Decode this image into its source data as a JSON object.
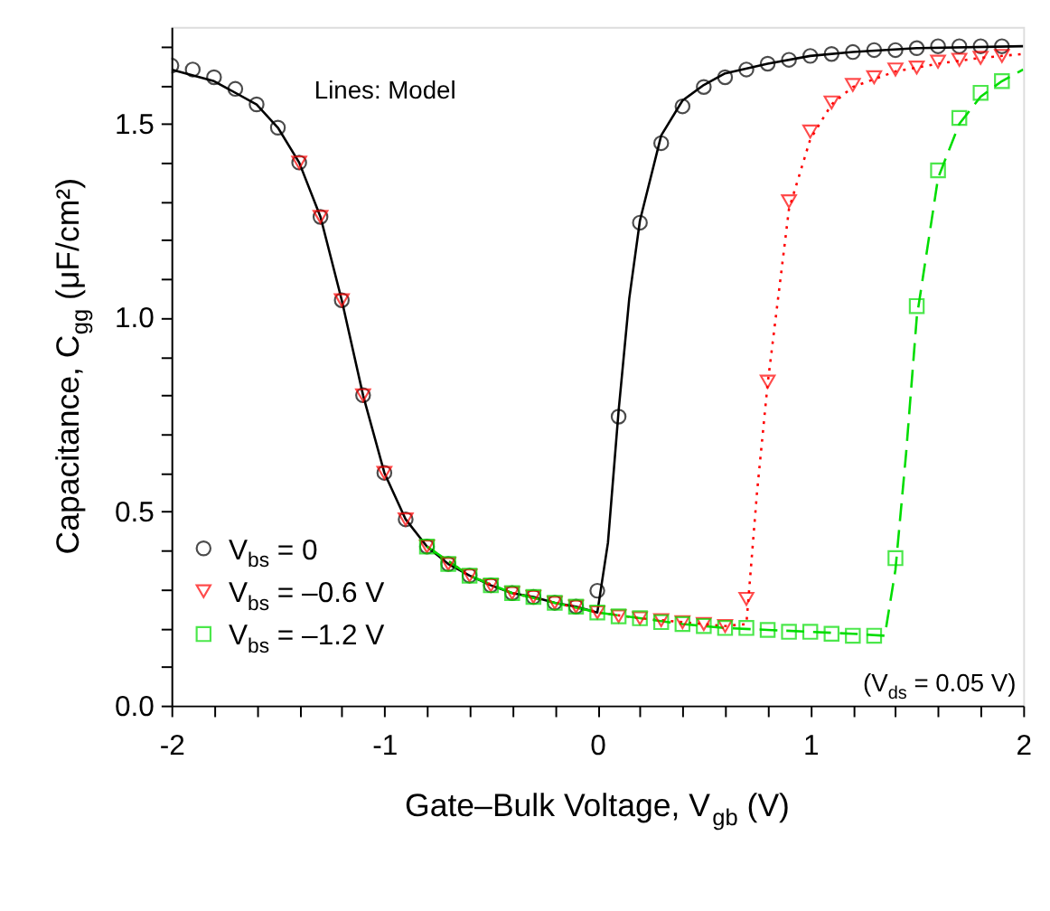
{
  "chart_data": {
    "type": "scatter",
    "xlabel": "Gate–Bulk Voltage, V$_{gb}$ (V)",
    "ylabel": "Capacitance, C$_{gg}$ (μF/cm²)",
    "xlim": [
      -2,
      2
    ],
    "ylim": [
      0,
      1.75
    ],
    "xticks": [
      -2,
      {
        "value": -1.8,
        "label": null
      },
      {
        "value": -1.6,
        "label": null
      },
      {
        "value": -1.4,
        "label": null
      },
      {
        "value": -1.2,
        "label": null
      },
      -1,
      {
        "value": -0.8,
        "label": null
      },
      {
        "value": -0.6,
        "label": null
      },
      {
        "value": -0.4,
        "label": null
      },
      {
        "value": -0.2,
        "label": null
      },
      0,
      {
        "value": 0.2,
        "label": null
      },
      {
        "value": 0.4,
        "label": null
      },
      {
        "value": 0.6,
        "label": null
      },
      {
        "value": 0.8,
        "label": null
      },
      1,
      {
        "value": 1.2,
        "label": null
      },
      {
        "value": 1.4,
        "label": null
      },
      {
        "value": 1.6,
        "label": null
      },
      {
        "value": 1.8,
        "label": null
      },
      2
    ],
    "yticks": [
      {
        "value": 0,
        "label": "0.0"
      },
      {
        "value": 0.1,
        "label": null
      },
      {
        "value": 0.2,
        "label": null
      },
      {
        "value": 0.3,
        "label": null
      },
      {
        "value": 0.4,
        "label": null
      },
      {
        "value": 0.5,
        "label": "0.5"
      },
      {
        "value": 0.6,
        "label": null
      },
      {
        "value": 0.7,
        "label": null
      },
      {
        "value": 0.8,
        "label": null
      },
      {
        "value": 0.9,
        "label": null
      },
      {
        "value": 1,
        "label": "1.0"
      },
      {
        "value": 1.1,
        "label": null
      },
      {
        "value": 1.2,
        "label": null
      },
      {
        "value": 1.3,
        "label": null
      },
      {
        "value": 1.4,
        "label": null
      },
      {
        "value": 1.5,
        "label": "1.5"
      },
      {
        "value": 1.6,
        "label": null
      },
      {
        "value": 1.7,
        "label": null
      }
    ],
    "grid": false,
    "legend": "bottom left",
    "annotations": [
      "Lines: Model",
      "(V$_{ds}$ = 0.05 V)"
    ],
    "series": [
      {
        "type": "line",
        "color": "#000000",
        "line_style": "solid",
        "x": [
          -2,
          -1.8,
          -1.6,
          -1.5,
          -1.4,
          -1.3,
          -1.2,
          -1.1,
          -1,
          -0.9,
          -0.8,
          -0.7,
          -0.6,
          -0.5,
          -0.4,
          -0.3,
          -0.2,
          -0.1,
          0,
          0.05,
          0.1,
          0.15,
          0.2,
          0.3,
          0.4,
          0.5,
          0.6,
          0.8,
          1,
          1.2,
          1.5,
          2
        ],
        "values": [
          1.64,
          1.61,
          1.55,
          1.49,
          1.4,
          1.26,
          1.045,
          0.8,
          0.6,
          0.48,
          0.41,
          0.365,
          0.335,
          0.31,
          0.29,
          0.28,
          0.265,
          0.255,
          0.24,
          0.42,
          0.76,
          1.05,
          1.25,
          1.47,
          1.56,
          1.6,
          1.63,
          1.655,
          1.675,
          1.685,
          1.695,
          1.7
        ]
      },
      {
        "type": "line",
        "color": "#ff0000",
        "line_style": "dotted",
        "x": [
          -0.8,
          -0.6,
          -0.4,
          -0.2,
          0,
          0.2,
          0.4,
          0.6,
          0.7,
          0.75,
          0.8,
          0.9,
          1,
          1.1,
          1.2,
          1.4,
          1.6,
          1.8,
          2
        ],
        "values": [
          0.41,
          0.335,
          0.29,
          0.265,
          0.24,
          0.225,
          0.215,
          0.205,
          0.21,
          0.55,
          0.83,
          1.28,
          1.46,
          1.55,
          1.595,
          1.635,
          1.655,
          1.67,
          1.68
        ]
      },
      {
        "type": "line",
        "color": "#00dd00",
        "line_style": "dashed",
        "x": [
          -0.8,
          -0.6,
          -0.4,
          -0.2,
          0,
          0.2,
          0.4,
          0.6,
          0.8,
          1,
          1.2,
          1.35,
          1.4,
          1.45,
          1.5,
          1.6,
          1.7,
          1.8,
          1.9,
          2
        ],
        "values": [
          0.41,
          0.335,
          0.29,
          0.265,
          0.24,
          0.225,
          0.21,
          0.2,
          0.195,
          0.19,
          0.185,
          0.18,
          0.35,
          0.65,
          1.0,
          1.36,
          1.5,
          1.57,
          1.61,
          1.64
        ]
      },
      {
        "name": "V$_{bs}$ = 0",
        "marker": "circle",
        "color": "#000000",
        "x": [
          -2,
          -1.9,
          -1.8,
          -1.7,
          -1.6,
          -1.5,
          -1.4,
          -1.3,
          -1.2,
          -1.1,
          -1,
          -0.9,
          -0.8,
          -0.7,
          -0.6,
          -0.5,
          -0.4,
          -0.3,
          -0.2,
          -0.1,
          0,
          0.1,
          0.2,
          0.3,
          0.4,
          0.5,
          0.6,
          0.7,
          0.8,
          0.9,
          1,
          1.1,
          1.2,
          1.3,
          1.4,
          1.5,
          1.6,
          1.7,
          1.8,
          1.9
        ],
        "values": [
          1.65,
          1.64,
          1.62,
          1.59,
          1.55,
          1.49,
          1.4,
          1.26,
          1.045,
          0.8,
          0.6,
          0.48,
          0.41,
          0.365,
          0.335,
          0.31,
          0.29,
          0.28,
          0.265,
          0.255,
          0.296,
          0.745,
          1.245,
          1.45,
          1.545,
          1.595,
          1.62,
          1.64,
          1.655,
          1.665,
          1.675,
          1.68,
          1.685,
          1.69,
          1.69,
          1.695,
          1.7,
          1.7,
          1.7,
          1.7
        ]
      },
      {
        "name": "V$_{bs}$ = –0.6 V",
        "marker": "triangle",
        "color": "#ff0000",
        "x": [
          -1.4,
          -1.3,
          -1.2,
          -1.1,
          -1,
          -0.9,
          -0.8,
          -0.7,
          -0.6,
          -0.5,
          -0.4,
          -0.3,
          -0.2,
          -0.1,
          0,
          0.1,
          0.2,
          0.3,
          0.4,
          0.5,
          0.6,
          0.7,
          0.8,
          0.9,
          1,
          1.1,
          1.2,
          1.3,
          1.4,
          1.5,
          1.6,
          1.7,
          1.8,
          1.9
        ],
        "values": [
          1.4,
          1.26,
          1.045,
          0.8,
          0.6,
          0.48,
          0.41,
          0.365,
          0.335,
          0.31,
          0.29,
          0.28,
          0.265,
          0.255,
          0.24,
          0.23,
          0.225,
          0.22,
          0.215,
          0.21,
          0.205,
          0.275,
          0.835,
          1.3,
          1.48,
          1.555,
          1.6,
          1.62,
          1.64,
          1.645,
          1.66,
          1.665,
          1.67,
          1.675
        ]
      },
      {
        "name": "V$_{bs}$ = –1.2 V",
        "marker": "square",
        "color": "#00dd00",
        "x": [
          -0.8,
          -0.7,
          -0.6,
          -0.5,
          -0.4,
          -0.3,
          -0.2,
          -0.1,
          0,
          0.1,
          0.2,
          0.3,
          0.4,
          0.5,
          0.6,
          0.7,
          0.8,
          0.9,
          1,
          1.1,
          1.2,
          1.3,
          1.4,
          1.5,
          1.6,
          1.7,
          1.8,
          1.9
        ],
        "values": [
          0.41,
          0.365,
          0.335,
          0.31,
          0.29,
          0.28,
          0.265,
          0.255,
          0.24,
          0.23,
          0.225,
          0.215,
          0.21,
          0.205,
          0.2,
          0.2,
          0.195,
          0.19,
          0.19,
          0.185,
          0.18,
          0.18,
          0.38,
          1.03,
          1.38,
          1.515,
          1.58,
          1.61
        ]
      }
    ]
  }
}
